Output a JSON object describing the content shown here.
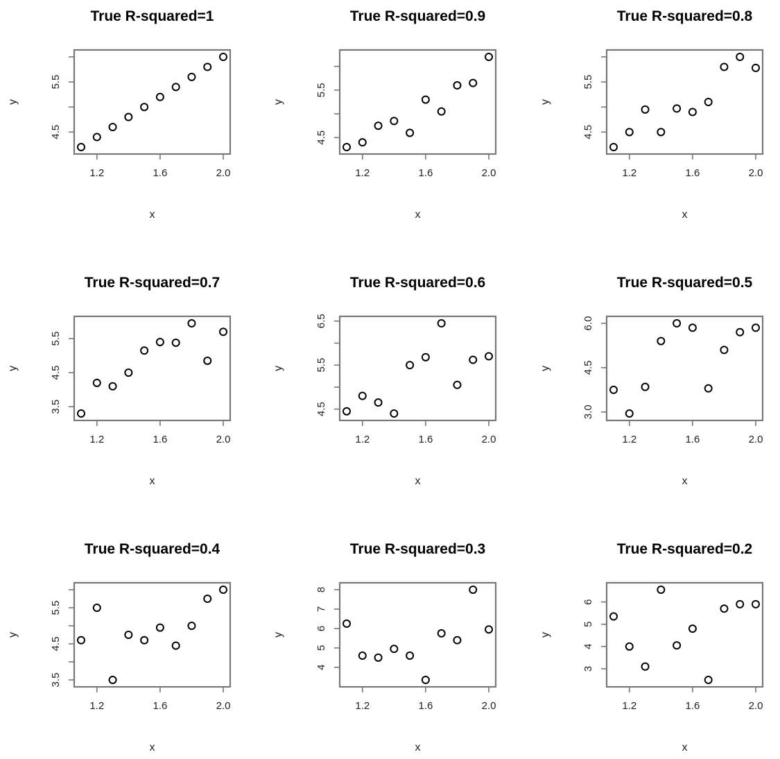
{
  "chart_data": [
    {
      "type": "scatter",
      "title": "True R-squared=1",
      "xlabel": "x",
      "ylabel": "y",
      "xlim": [
        1.1,
        2.0
      ],
      "ylim": [
        4.2,
        6.0
      ],
      "xticks": [
        1.2,
        1.6,
        2.0
      ],
      "xtick_labels": [
        "1.2",
        "1.6",
        "2.0"
      ],
      "yticks": [
        4.5,
        5.0,
        5.5,
        6.0
      ],
      "ytick_labels": [
        "4.5",
        "",
        "5.5",
        ""
      ],
      "x": [
        1.1,
        1.2,
        1.3,
        1.4,
        1.5,
        1.6,
        1.7,
        1.8,
        1.9,
        2.0
      ],
      "y": [
        4.2,
        4.4,
        4.6,
        4.8,
        5.0,
        5.2,
        5.4,
        5.6,
        5.8,
        6.0
      ]
    },
    {
      "type": "scatter",
      "title": "True R-squared=0.9",
      "xlabel": "x",
      "ylabel": "y",
      "xlim": [
        1.1,
        2.0
      ],
      "ylim": [
        4.3,
        6.2
      ],
      "xticks": [
        1.2,
        1.6,
        2.0
      ],
      "xtick_labels": [
        "1.2",
        "1.6",
        "2.0"
      ],
      "yticks": [
        4.5,
        5.0,
        5.5,
        6.0
      ],
      "ytick_labels": [
        "4.5",
        "",
        "5.5",
        ""
      ],
      "x": [
        1.1,
        1.2,
        1.3,
        1.4,
        1.5,
        1.6,
        1.7,
        1.8,
        1.9,
        2.0
      ],
      "y": [
        4.3,
        4.4,
        4.75,
        4.85,
        4.6,
        5.3,
        5.05,
        5.6,
        5.65,
        6.2
      ]
    },
    {
      "type": "scatter",
      "title": "True R-squared=0.8",
      "xlabel": "x",
      "ylabel": "y",
      "xlim": [
        1.1,
        2.0
      ],
      "ylim": [
        4.2,
        6.0
      ],
      "xticks": [
        1.2,
        1.6,
        2.0
      ],
      "xtick_labels": [
        "1.2",
        "1.6",
        "2.0"
      ],
      "yticks": [
        4.5,
        5.0,
        5.5,
        6.0
      ],
      "ytick_labels": [
        "4.5",
        "",
        "5.5",
        ""
      ],
      "x": [
        1.1,
        1.2,
        1.3,
        1.4,
        1.5,
        1.6,
        1.7,
        1.8,
        1.9,
        2.0
      ],
      "y": [
        4.2,
        4.5,
        4.95,
        4.5,
        4.97,
        4.9,
        5.1,
        5.8,
        6.0,
        5.78
      ]
    },
    {
      "type": "scatter",
      "title": "True R-squared=0.7",
      "xlabel": "x",
      "ylabel": "y",
      "xlim": [
        1.1,
        2.0
      ],
      "ylim": [
        3.3,
        5.95
      ],
      "xticks": [
        1.2,
        1.6,
        2.0
      ],
      "xtick_labels": [
        "1.2",
        "1.6",
        "2.0"
      ],
      "yticks": [
        3.5,
        4.5,
        5.5
      ],
      "ytick_labels": [
        "3.5",
        "4.5",
        "5.5"
      ],
      "x": [
        1.1,
        1.2,
        1.3,
        1.4,
        1.5,
        1.6,
        1.7,
        1.8,
        1.9,
        2.0
      ],
      "y": [
        3.3,
        4.2,
        4.1,
        4.5,
        5.15,
        5.4,
        5.38,
        5.95,
        4.85,
        5.7
      ]
    },
    {
      "type": "scatter",
      "title": "True R-squared=0.6",
      "xlabel": "x",
      "ylabel": "y",
      "xlim": [
        1.1,
        2.0
      ],
      "ylim": [
        4.4,
        6.45
      ],
      "xticks": [
        1.2,
        1.6,
        2.0
      ],
      "xtick_labels": [
        "1.2",
        "1.6",
        "2.0"
      ],
      "yticks": [
        4.5,
        5.0,
        5.5,
        6.0,
        6.5
      ],
      "ytick_labels": [
        "4.5",
        "",
        "5.5",
        "",
        "6.5"
      ],
      "x": [
        1.1,
        1.2,
        1.3,
        1.4,
        1.5,
        1.6,
        1.7,
        1.8,
        1.9,
        2.0
      ],
      "y": [
        4.45,
        4.8,
        4.65,
        4.4,
        5.5,
        5.68,
        6.45,
        5.05,
        5.62,
        5.7
      ]
    },
    {
      "type": "scatter",
      "title": "True R-squared=0.5",
      "xlabel": "x",
      "ylabel": "y",
      "xlim": [
        1.1,
        2.0
      ],
      "ylim": [
        2.95,
        6.0
      ],
      "xticks": [
        1.2,
        1.6,
        2.0
      ],
      "xtick_labels": [
        "1.2",
        "1.6",
        "2.0"
      ],
      "yticks": [
        3.0,
        4.5,
        6.0
      ],
      "ytick_labels": [
        "3.0",
        "4.5",
        "6.0"
      ],
      "x": [
        1.1,
        1.2,
        1.3,
        1.4,
        1.5,
        1.6,
        1.7,
        1.8,
        1.9,
        2.0
      ],
      "y": [
        3.75,
        2.95,
        3.85,
        5.4,
        6.0,
        5.85,
        3.8,
        5.1,
        5.7,
        5.85
      ]
    },
    {
      "type": "scatter",
      "title": "True R-squared=0.4",
      "xlabel": "x",
      "ylabel": "y",
      "xlim": [
        1.1,
        2.0
      ],
      "ylim": [
        3.5,
        6.0
      ],
      "xticks": [
        1.2,
        1.6,
        2.0
      ],
      "xtick_labels": [
        "1.2",
        "1.6",
        "2.0"
      ],
      "yticks": [
        3.5,
        4.0,
        4.5,
        5.0,
        5.5,
        6.0
      ],
      "ytick_labels": [
        "3.5",
        "",
        "4.5",
        "",
        "5.5",
        ""
      ],
      "x": [
        1.1,
        1.2,
        1.3,
        1.4,
        1.5,
        1.6,
        1.7,
        1.8,
        1.9,
        2.0
      ],
      "y": [
        4.6,
        5.5,
        3.5,
        4.75,
        4.6,
        4.95,
        4.45,
        5.0,
        5.75,
        6.0
      ]
    },
    {
      "type": "scatter",
      "title": "True R-squared=0.3",
      "xlabel": "x",
      "ylabel": "y",
      "xlim": [
        1.1,
        2.0
      ],
      "ylim": [
        3.35,
        8.0
      ],
      "xticks": [
        1.2,
        1.6,
        2.0
      ],
      "xtick_labels": [
        "1.2",
        "1.6",
        "2.0"
      ],
      "yticks": [
        4,
        5,
        6,
        7,
        8
      ],
      "ytick_labels": [
        "4",
        "5",
        "6",
        "7",
        "8"
      ],
      "x": [
        1.1,
        1.2,
        1.3,
        1.4,
        1.5,
        1.6,
        1.7,
        1.8,
        1.9,
        2.0
      ],
      "y": [
        6.25,
        4.6,
        4.5,
        4.95,
        4.6,
        3.35,
        5.75,
        5.4,
        8.0,
        5.95
      ]
    },
    {
      "type": "scatter",
      "title": "True R-squared=0.2",
      "xlabel": "x",
      "ylabel": "y",
      "xlim": [
        1.1,
        2.0
      ],
      "ylim": [
        2.5,
        6.55
      ],
      "xticks": [
        1.2,
        1.6,
        2.0
      ],
      "xtick_labels": [
        "1.2",
        "1.6",
        "2.0"
      ],
      "yticks": [
        3,
        4,
        5,
        6
      ],
      "ytick_labels": [
        "3",
        "4",
        "5",
        "6"
      ],
      "x": [
        1.1,
        1.2,
        1.3,
        1.4,
        1.5,
        1.6,
        1.7,
        1.8,
        1.9,
        2.0
      ],
      "y": [
        5.35,
        4.0,
        3.1,
        6.55,
        4.05,
        4.8,
        2.5,
        5.7,
        5.9,
        5.9
      ]
    }
  ]
}
